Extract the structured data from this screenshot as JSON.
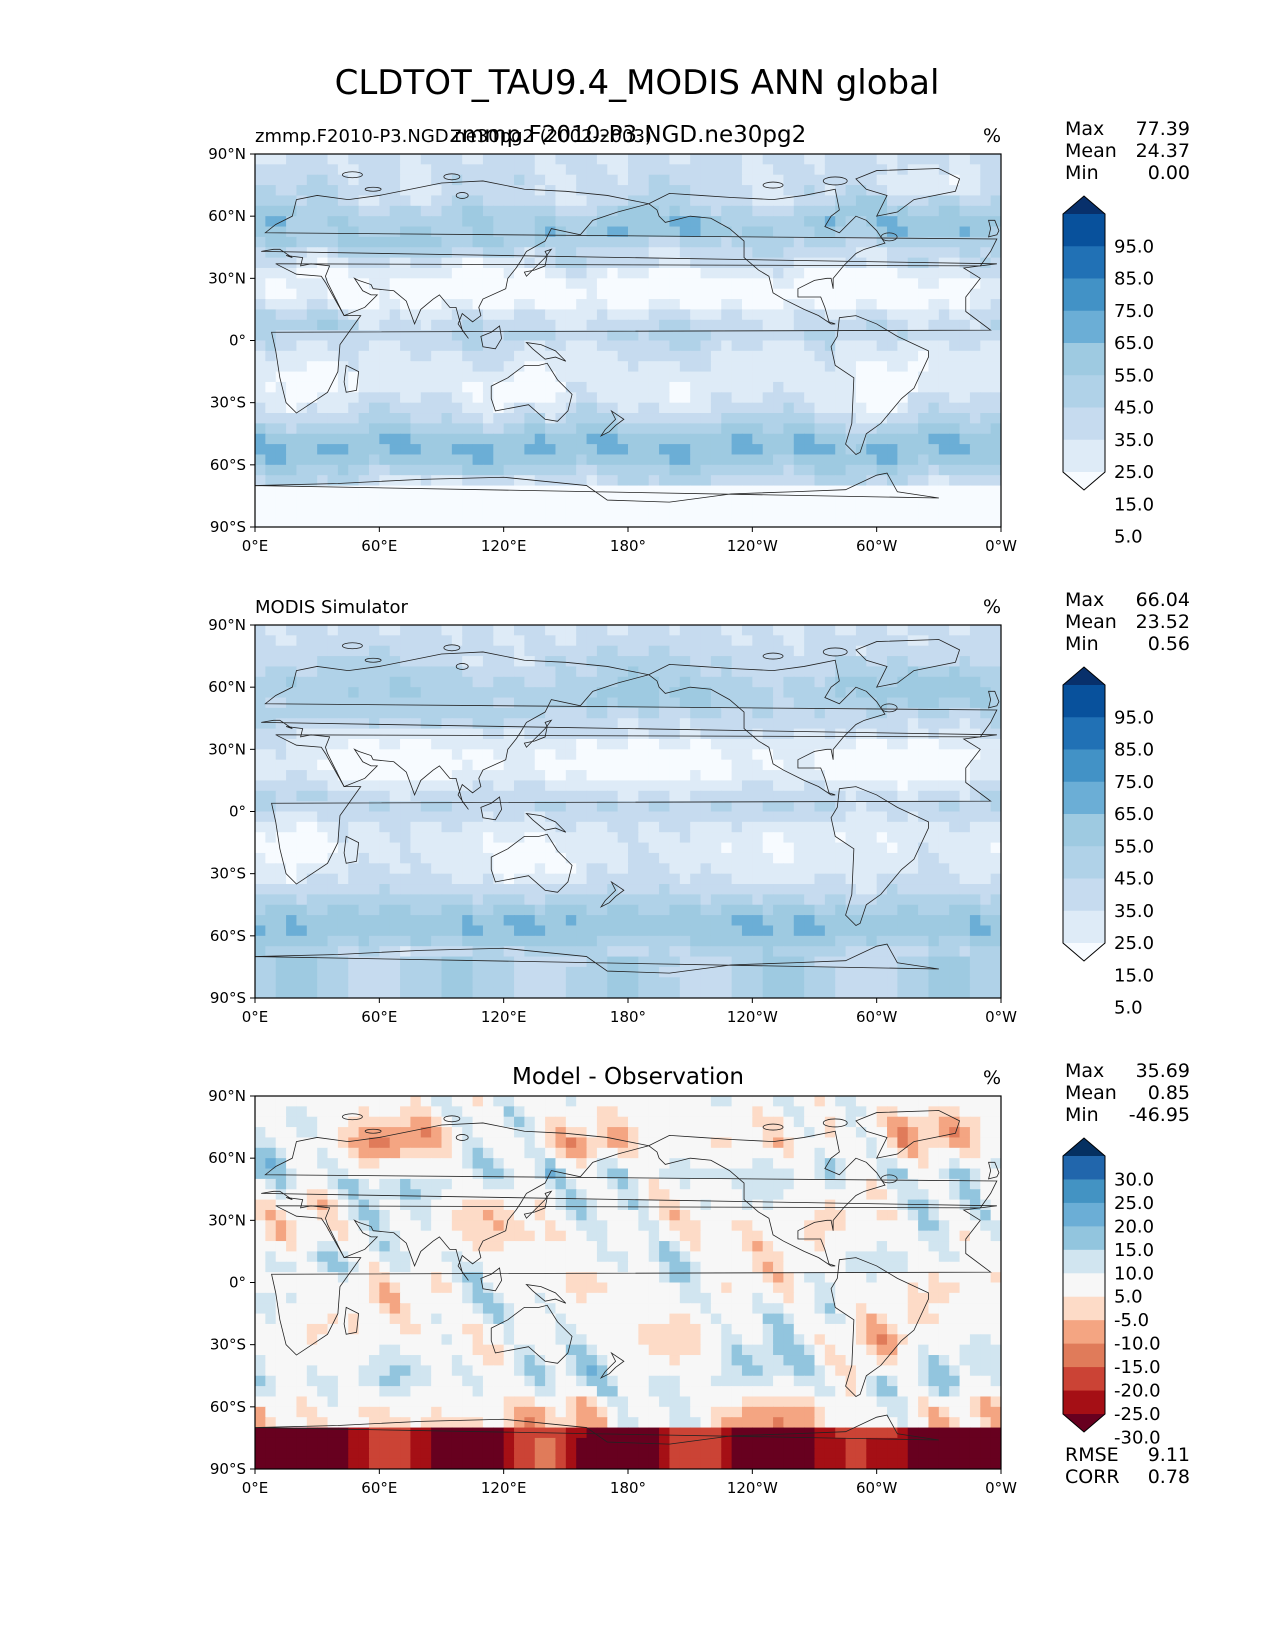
{
  "figure": {
    "title": "CLDTOT_TAU9.4_MODIS ANN global"
  },
  "colors": {
    "seq": [
      "#f7fbff",
      "#deebf7",
      "#c6dbef",
      "#b0d2e8",
      "#9ecae1",
      "#6baed6",
      "#4292c6",
      "#2171b5",
      "#08519c",
      "#08306b"
    ],
    "div": [
      "#67001f",
      "#a50f15",
      "#cb4335",
      "#e07b5a",
      "#f4a582",
      "#fddbc7",
      "#f7f7f7",
      "#d1e5f0",
      "#92c5de",
      "#6baed6",
      "#4393c3",
      "#2166ac",
      "#053061"
    ]
  },
  "axes": {
    "lat_ticks": [
      "90°N",
      "60°N",
      "30°N",
      "0°",
      "30°S",
      "60°S",
      "90°S"
    ],
    "lon_ticks": [
      "0°E",
      "60°E",
      "120°E",
      "180°",
      "120°W",
      "60°W",
      "0°W"
    ]
  },
  "chart_data": [
    {
      "type": "heatmap",
      "panel": "test",
      "title_left": "zmmp.F2010-P3.NGD.ne30pg2 (2002-2003)",
      "title_center": "zmmp.F2010-P3.NGD.ne30pg2",
      "units": "%",
      "stats": {
        "labels": [
          "Max",
          "Mean",
          "Min"
        ],
        "values": [
          "77.39",
          "24.37",
          "0.00"
        ]
      },
      "colorbar": {
        "ticks": [
          "95.0",
          "85.0",
          "75.0",
          "65.0",
          "55.0",
          "45.0",
          "35.0",
          "25.0",
          "15.0",
          "5.0"
        ],
        "palette": "seq"
      },
      "field": "test"
    },
    {
      "type": "heatmap",
      "panel": "reference",
      "title_left": "MODIS Simulator",
      "title_center": "",
      "units": "%",
      "stats": {
        "labels": [
          "Max",
          "Mean",
          "Min"
        ],
        "values": [
          "66.04",
          "23.52",
          "0.56"
        ]
      },
      "colorbar": {
        "ticks": [
          "95.0",
          "85.0",
          "75.0",
          "65.0",
          "55.0",
          "45.0",
          "35.0",
          "25.0",
          "15.0",
          "5.0"
        ],
        "palette": "seq"
      },
      "field": "ref"
    },
    {
      "type": "heatmap",
      "panel": "difference",
      "title_left": "",
      "title_center": "Model - Observation",
      "units": "%",
      "stats": {
        "labels": [
          "Max",
          "Mean",
          "Min"
        ],
        "values": [
          "35.69",
          "0.85",
          "-46.95"
        ]
      },
      "colorbar": {
        "ticks": [
          "30.0",
          "25.0",
          "20.0",
          "15.0",
          "10.0",
          "5.0",
          "-5.0",
          "-10.0",
          "-15.0",
          "-20.0",
          "-25.0",
          "-30.0"
        ],
        "palette": "div"
      },
      "extra_stats": {
        "labels": [
          "RMSE",
          "CORR"
        ],
        "values": [
          "9.11",
          "0.78"
        ]
      },
      "field": "diff"
    }
  ]
}
